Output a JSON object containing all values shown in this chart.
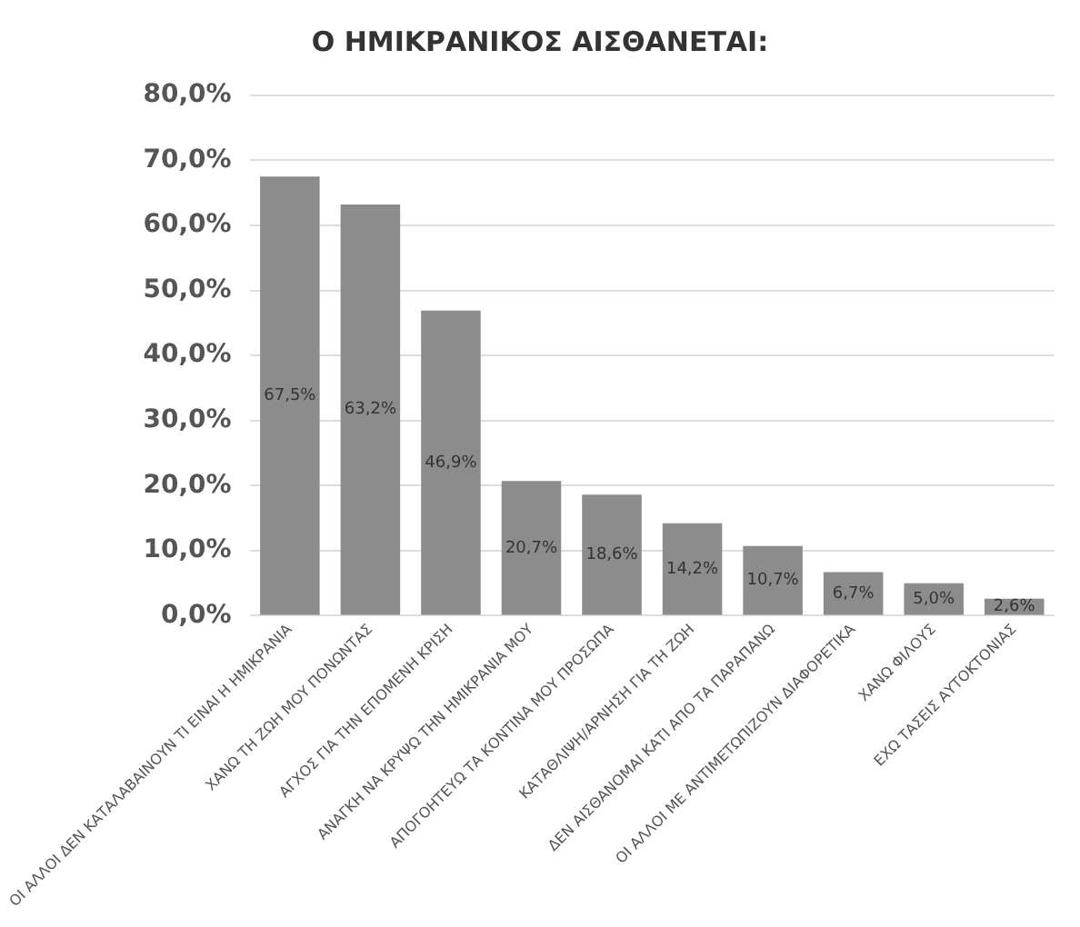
{
  "chart_data": {
    "type": "bar",
    "title": "Ο ΗΜΙΚΡΑΝΙΚΟΣ ΑΙΣΘΑΝΕΤΑΙ:",
    "categories": [
      "ΟΙ ΑΛΛΟΙ ΔΕΝ ΚΑΤΑΛΑΒΑΙΝΟΥΝ ΤΙ ΕΙΝΑΙ Η ΗΜΙΚΡΑΝΙΑ",
      "ΧΑΝΩ ΤΗ ΖΩΗ ΜΟΥ ΠΟΝΩΝΤΑΣ",
      "ΑΓΧΟΣ ΓΙΑ ΤΗΝ ΕΠΟΜΕΝΗ ΚΡΙΣΗ",
      "ΑΝΑΓΚΗ ΝΑ ΚΡΥΨΩ ΤΗΝ ΗΜΙΚΡΑΝΙΑ ΜΟΥ",
      "ΑΠΟΓΟΗΤΕΥΩ ΤΑ ΚΟΝΤΙΝΑ ΜΟΥ ΠΡΟΣΩΠΑ",
      "ΚΑΤΑΘΛΙΨΗ/ΑΡΝΗΣΗ ΓΙΑ ΤΗ ΖΩΗ",
      "ΔΕΝ ΑΙΣΘΑΝΟΜΑΙ ΚΑΤΙ ΑΠΟ ΤΑ ΠΑΡΑΠΑΝΩ",
      "ΟΙ ΑΛΛΟΙ ΜΕ ΑΝΤΙΜΕΤΩΠΙΖΟΥΝ ΔΙΑΦΟΡΕΤΙΚΑ",
      "ΧΑΝΩ ΦΙΛΟΥΣ",
      "ΕΧΩ ΤΑΣΕΙΣ ΑΥΤΟΚΤΟΝΙΑΣ"
    ],
    "values": [
      67.5,
      63.2,
      46.9,
      20.7,
      18.6,
      14.2,
      10.7,
      6.7,
      5.0,
      2.6
    ],
    "value_labels": [
      "67,5%",
      "63,2%",
      "46,9%",
      "20,7%",
      "18,6%",
      "14,2%",
      "10,7%",
      "6,7%",
      "5,0%",
      "2,6%"
    ],
    "color": "#8c8c8c",
    "ylim": [
      0,
      80
    ],
    "yticks": [
      {
        "value": 0,
        "label": "0,0%"
      },
      {
        "value": 10,
        "label": "10,0%"
      },
      {
        "value": 20,
        "label": "20,0%"
      },
      {
        "value": 30,
        "label": "30,0%"
      },
      {
        "value": 40,
        "label": "40,0%"
      },
      {
        "value": 50,
        "label": "50,0%"
      },
      {
        "value": 60,
        "label": "60,0%"
      },
      {
        "value": 70,
        "label": "70,0%"
      },
      {
        "value": 80,
        "label": "80,0%"
      }
    ],
    "grid": "y",
    "legend": false
  }
}
